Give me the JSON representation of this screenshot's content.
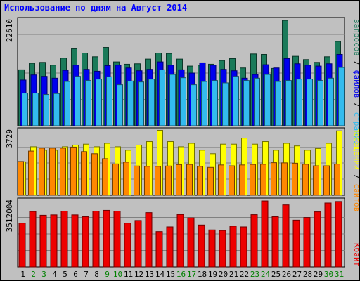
{
  "title": "Использование по дням на Август 2014",
  "colors": {
    "background": "#c0c0c0",
    "panel": "#c0c0c0",
    "grid": "#808080",
    "title": "#0000ff",
    "requests": "#1a7a5a",
    "files": "#0000ee",
    "pages": "#33bbee",
    "visits": "#ffff00",
    "sites": "#ff8800",
    "kbytes": "#ee0000",
    "weekday_label": "#000000",
    "weekend_label": "#008000"
  },
  "side_labels": {
    "requests": "запросов",
    "files": "файлов",
    "pages": "страниц",
    "visits": "посещений",
    "sites": "сайтов",
    "kbytes": "Кбайт",
    "sep": " / "
  },
  "chart_data": [
    {
      "type": "bar",
      "panel": "requests-files-pages",
      "ymax_label": "22610",
      "ylim": [
        0,
        22610
      ],
      "categories": [
        "1",
        "2",
        "3",
        "4",
        "5",
        "6",
        "7",
        "8",
        "9",
        "10",
        "11",
        "12",
        "13",
        "14",
        "15",
        "16",
        "17",
        "18",
        "19",
        "20",
        "21",
        "22",
        "23",
        "24",
        "25",
        "26",
        "27",
        "28",
        "29",
        "30",
        "31"
      ],
      "weekend": [
        2,
        3,
        9,
        10,
        16,
        17,
        23,
        24,
        30,
        31
      ],
      "series": [
        {
          "name": "запросов",
          "values": [
            12000,
            13400,
            13600,
            13000,
            14500,
            16500,
            15600,
            14800,
            16800,
            13700,
            13200,
            13300,
            14300,
            15600,
            15500,
            14300,
            12800,
            13000,
            13200,
            14000,
            14400,
            12400,
            15400,
            15300,
            12300,
            22600,
            14900,
            14200,
            13600,
            14800,
            18100
          ]
        },
        {
          "name": "файлов",
          "values": [
            9800,
            10900,
            10600,
            10200,
            11900,
            13000,
            12100,
            11700,
            12900,
            13000,
            12400,
            11800,
            12100,
            13700,
            13000,
            12000,
            11300,
            13500,
            13000,
            12100,
            11800,
            10200,
            11000,
            13100,
            12400,
            14400,
            13300,
            13000,
            12800,
            13300,
            15300
          ]
        },
        {
          "name": "страниц",
          "values": [
            7000,
            7000,
            6700,
            6900,
            9500,
            10600,
            9700,
            10000,
            10500,
            8800,
            9600,
            9400,
            10000,
            12000,
            11000,
            10300,
            8800,
            9500,
            9700,
            9200,
            10600,
            9700,
            10200,
            11000,
            9500,
            9700,
            10000,
            10000,
            9700,
            10200,
            12500
          ]
        }
      ]
    },
    {
      "type": "bar",
      "panel": "visits-sites",
      "ymax_label": "3729",
      "ylim": [
        0,
        3729
      ],
      "categories": [
        "1",
        "2",
        "3",
        "4",
        "5",
        "6",
        "7",
        "8",
        "9",
        "10",
        "11",
        "12",
        "13",
        "14",
        "15",
        "16",
        "17",
        "18",
        "19",
        "20",
        "21",
        "22",
        "23",
        "24",
        "25",
        "26",
        "27",
        "28",
        "29",
        "30",
        "31"
      ],
      "series": [
        {
          "name": "посещений",
          "values": [
            1930,
            2800,
            2600,
            2600,
            2800,
            2900,
            2950,
            2800,
            3000,
            2800,
            2600,
            2900,
            3100,
            3750,
            3100,
            2800,
            3000,
            2600,
            2400,
            2950,
            2950,
            3300,
            2950,
            3100,
            2600,
            3000,
            2850,
            2600,
            2700,
            3000,
            3720
          ]
        },
        {
          "name": "сайтов",
          "values": [
            1950,
            2550,
            2720,
            2720,
            2720,
            2780,
            2520,
            2400,
            2110,
            1810,
            1910,
            1690,
            1670,
            1670,
            1690,
            1770,
            1780,
            1670,
            1610,
            1750,
            1700,
            1750,
            1780,
            1790,
            1880,
            1870,
            1850,
            1790,
            1700,
            1700,
            1800
          ]
        }
      ]
    },
    {
      "type": "bar",
      "panel": "kbytes",
      "ymax_label": "3512004",
      "ylim": [
        0,
        3512004
      ],
      "categories": [
        "1",
        "2",
        "3",
        "4",
        "5",
        "6",
        "7",
        "8",
        "9",
        "10",
        "11",
        "12",
        "13",
        "14",
        "15",
        "16",
        "17",
        "18",
        "19",
        "20",
        "21",
        "22",
        "23",
        "24",
        "25",
        "26",
        "27",
        "28",
        "29",
        "30",
        "31"
      ],
      "series": [
        {
          "name": "Кбайт",
          "values": [
            2330000,
            2950000,
            2750000,
            2770000,
            2970000,
            2770000,
            2670000,
            2970000,
            3010000,
            2970000,
            2330000,
            2470000,
            2890000,
            1880000,
            2130000,
            2790000,
            2610000,
            2230000,
            1970000,
            1940000,
            2170000,
            2130000,
            2780000,
            3510000,
            2670000,
            3300000,
            2490000,
            2630000,
            2930000,
            3400000,
            3480000
          ]
        }
      ]
    }
  ]
}
